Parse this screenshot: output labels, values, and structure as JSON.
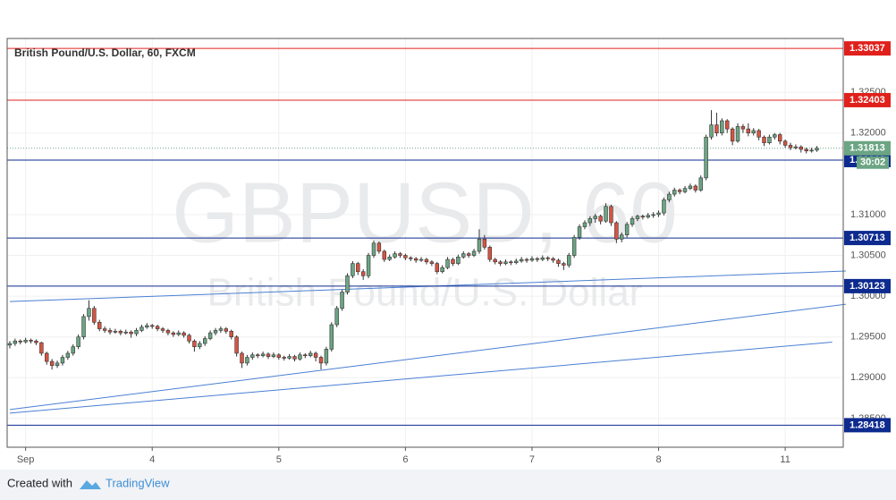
{
  "chart_data": {
    "type": "candlestick",
    "title": "British Pound/U.S. Dollar, 60, FXCM",
    "watermark": "GBPUSD, 60",
    "watermark_sub": "British Pound/U.S. Dollar",
    "footer": {
      "created_with": "Created with",
      "brand": "TradingView"
    },
    "up_color": "#6ba583",
    "down_color": "#d75442",
    "grid": true,
    "xlim": [
      -0.5,
      158
    ],
    "ylim": [
      1.28148,
      1.33159
    ],
    "xticks": [
      {
        "value": 3,
        "label": "Sep"
      },
      {
        "value": 27,
        "label": "4"
      },
      {
        "value": 51,
        "label": "5"
      },
      {
        "value": 75,
        "label": "6"
      },
      {
        "value": 99,
        "label": "7"
      },
      {
        "value": 123,
        "label": "8"
      },
      {
        "value": 147,
        "label": "11"
      }
    ],
    "yticks": [
      {
        "value": 1.285,
        "label": "1.28500"
      },
      {
        "value": 1.29,
        "label": "1.29000"
      },
      {
        "value": 1.295,
        "label": "1.29500"
      },
      {
        "value": 1.3,
        "label": "1.30000"
      },
      {
        "value": 1.305,
        "label": "1.30500"
      },
      {
        "value": 1.31,
        "label": "1.31000"
      },
      {
        "value": 1.32,
        "label": "1.32000"
      },
      {
        "value": 1.325,
        "label": "1.32500"
      }
    ],
    "levels": [
      {
        "price": 1.33037,
        "color": "#e0201b"
      },
      {
        "price": 1.32403,
        "color": "#e0201b"
      },
      {
        "price": 1.31668,
        "color": "#0d2a8f"
      },
      {
        "price": 1.30713,
        "color": "#0d2a8f"
      },
      {
        "price": 1.30123,
        "color": "#0d2a8f"
      },
      {
        "price": 1.28418,
        "color": "#0d2a8f"
      }
    ],
    "last_price": 1.31813,
    "countdown": "30:02",
    "trendlines": [
      {
        "x": [
          0,
          158.5
        ],
        "y": [
          1.29934,
          1.30308
        ],
        "color": "#4a7fd4"
      },
      {
        "x": [
          0,
          158.5
        ],
        "y": [
          1.2861,
          1.29901
        ],
        "color": "#4a7fd4"
      },
      {
        "x": [
          0,
          155.9
        ],
        "y": [
          1.28566,
          1.29436
        ],
        "color": "#4a7fd4"
      }
    ],
    "ohlc": [
      [
        1.294,
        1.2945,
        1.2936,
        1.2942
      ],
      [
        1.2942,
        1.2948,
        1.2939,
        1.2945
      ],
      [
        1.2945,
        1.2947,
        1.2941,
        1.2944
      ],
      [
        1.2944,
        1.2949,
        1.2942,
        1.2946
      ],
      [
        1.2946,
        1.2948,
        1.2942,
        1.2945
      ],
      [
        1.2945,
        1.2947,
        1.294,
        1.2943
      ],
      [
        1.2943,
        1.2944,
        1.2927,
        1.293
      ],
      [
        1.293,
        1.2932,
        1.2916,
        1.292
      ],
      [
        1.292,
        1.2923,
        1.291,
        1.2915
      ],
      [
        1.2915,
        1.2921,
        1.2912,
        1.2918
      ],
      [
        1.2918,
        1.2928,
        1.2915,
        1.2925
      ],
      [
        1.2925,
        1.2933,
        1.2922,
        1.293
      ],
      [
        1.293,
        1.2941,
        1.2927,
        1.2938
      ],
      [
        1.2938,
        1.2953,
        1.2935,
        1.295
      ],
      [
        1.295,
        1.2978,
        1.2947,
        1.2975
      ],
      [
        1.2975,
        1.2995,
        1.297,
        1.2985
      ],
      [
        1.2985,
        1.2988,
        1.2965,
        1.2968
      ],
      [
        1.2968,
        1.2971,
        1.2957,
        1.296
      ],
      [
        1.296,
        1.2963,
        1.2955,
        1.2958
      ],
      [
        1.2958,
        1.2961,
        1.2953,
        1.2956
      ],
      [
        1.2956,
        1.296,
        1.2954,
        1.2957
      ],
      [
        1.2957,
        1.2959,
        1.2952,
        1.2955
      ],
      [
        1.2955,
        1.2959,
        1.2953,
        1.2956
      ],
      [
        1.2956,
        1.2958,
        1.2949,
        1.2954
      ],
      [
        1.2954,
        1.2961,
        1.2951,
        1.2958
      ],
      [
        1.2958,
        1.2965,
        1.2956,
        1.2962
      ],
      [
        1.2962,
        1.2967,
        1.296,
        1.2964
      ],
      [
        1.2964,
        1.2966,
        1.296,
        1.2963
      ],
      [
        1.2963,
        1.2965,
        1.2957,
        1.296
      ],
      [
        1.296,
        1.2962,
        1.2955,
        1.2958
      ],
      [
        1.2958,
        1.296,
        1.2952,
        1.2955
      ],
      [
        1.2955,
        1.2957,
        1.295,
        1.2953
      ],
      [
        1.2953,
        1.2958,
        1.2951,
        1.2955
      ],
      [
        1.2955,
        1.2957,
        1.2949,
        1.2952
      ],
      [
        1.2952,
        1.2954,
        1.2942,
        1.2945
      ],
      [
        1.2945,
        1.2947,
        1.2932,
        1.2938
      ],
      [
        1.2938,
        1.2945,
        1.2935,
        1.2942
      ],
      [
        1.2942,
        1.2951,
        1.2939,
        1.2948
      ],
      [
        1.2948,
        1.2958,
        1.2946,
        1.2955
      ],
      [
        1.2955,
        1.2961,
        1.2952,
        1.2958
      ],
      [
        1.2958,
        1.2963,
        1.2955,
        1.296
      ],
      [
        1.296,
        1.2962,
        1.2954,
        1.2957
      ],
      [
        1.2957,
        1.2959,
        1.2947,
        1.295
      ],
      [
        1.295,
        1.2952,
        1.2926,
        1.293
      ],
      [
        1.293,
        1.2932,
        1.2912,
        1.2918
      ],
      [
        1.2918,
        1.2928,
        1.2915,
        1.2925
      ],
      [
        1.2925,
        1.2931,
        1.2922,
        1.2928
      ],
      [
        1.2928,
        1.293,
        1.2924,
        1.2927
      ],
      [
        1.2927,
        1.2932,
        1.2925,
        1.2929
      ],
      [
        1.2929,
        1.2931,
        1.2923,
        1.2926
      ],
      [
        1.2926,
        1.2931,
        1.2924,
        1.2928
      ],
      [
        1.2928,
        1.293,
        1.2922,
        1.2925
      ],
      [
        1.2925,
        1.2927,
        1.2921,
        1.2924
      ],
      [
        1.2924,
        1.2929,
        1.2922,
        1.2926
      ],
      [
        1.2926,
        1.2928,
        1.292,
        1.2923
      ],
      [
        1.2923,
        1.2931,
        1.2921,
        1.2928
      ],
      [
        1.2928,
        1.293,
        1.2924,
        1.2927
      ],
      [
        1.2927,
        1.2933,
        1.2925,
        1.293
      ],
      [
        1.293,
        1.2932,
        1.292,
        1.2925
      ],
      [
        1.2925,
        1.2927,
        1.291,
        1.2918
      ],
      [
        1.2918,
        1.2938,
        1.2915,
        1.2935
      ],
      [
        1.2935,
        1.2968,
        1.2932,
        1.2965
      ],
      [
        1.2965,
        1.2988,
        1.2962,
        1.2985
      ],
      [
        1.2985,
        1.3008,
        1.2982,
        1.3005
      ],
      [
        1.3005,
        1.3028,
        1.3002,
        1.3025
      ],
      [
        1.3025,
        1.3043,
        1.3022,
        1.304
      ],
      [
        1.304,
        1.3042,
        1.3026,
        1.303
      ],
      [
        1.303,
        1.3033,
        1.302,
        1.3025
      ],
      [
        1.3025,
        1.3053,
        1.3022,
        1.305
      ],
      [
        1.305,
        1.3068,
        1.3047,
        1.3065
      ],
      [
        1.3065,
        1.3067,
        1.3052,
        1.3055
      ],
      [
        1.3055,
        1.3057,
        1.3042,
        1.3045
      ],
      [
        1.3045,
        1.3051,
        1.3043,
        1.3048
      ],
      [
        1.3048,
        1.3055,
        1.3046,
        1.3052
      ],
      [
        1.3052,
        1.3054,
        1.3047,
        1.305
      ],
      [
        1.305,
        1.3052,
        1.3044,
        1.3047
      ],
      [
        1.3047,
        1.3049,
        1.3043,
        1.3046
      ],
      [
        1.3046,
        1.3048,
        1.3041,
        1.3044
      ],
      [
        1.3044,
        1.3048,
        1.3042,
        1.3045
      ],
      [
        1.3045,
        1.3047,
        1.3039,
        1.3042
      ],
      [
        1.3042,
        1.3044,
        1.3037,
        1.304
      ],
      [
        1.304,
        1.3042,
        1.3027,
        1.303
      ],
      [
        1.303,
        1.3038,
        1.3028,
        1.3035
      ],
      [
        1.3035,
        1.3048,
        1.3033,
        1.3045
      ],
      [
        1.3045,
        1.3047,
        1.3037,
        1.304
      ],
      [
        1.304,
        1.3051,
        1.3038,
        1.3048
      ],
      [
        1.3048,
        1.3055,
        1.3046,
        1.3052
      ],
      [
        1.3052,
        1.3054,
        1.3047,
        1.305
      ],
      [
        1.305,
        1.3058,
        1.3048,
        1.3055
      ],
      [
        1.3055,
        1.3082,
        1.3052,
        1.307
      ],
      [
        1.307,
        1.3075,
        1.3057,
        1.306
      ],
      [
        1.306,
        1.3062,
        1.3042,
        1.3045
      ],
      [
        1.3045,
        1.3047,
        1.3039,
        1.3042
      ],
      [
        1.3042,
        1.3044,
        1.3037,
        1.304
      ],
      [
        1.304,
        1.3045,
        1.3038,
        1.3042
      ],
      [
        1.3042,
        1.3044,
        1.3038,
        1.3041
      ],
      [
        1.3041,
        1.3046,
        1.3039,
        1.3043
      ],
      [
        1.3043,
        1.3048,
        1.3041,
        1.3045
      ],
      [
        1.3045,
        1.3047,
        1.3041,
        1.3044
      ],
      [
        1.3044,
        1.3049,
        1.3042,
        1.3046
      ],
      [
        1.3046,
        1.3048,
        1.3042,
        1.3045
      ],
      [
        1.3045,
        1.305,
        1.3043,
        1.3047
      ],
      [
        1.3047,
        1.3049,
        1.3043,
        1.3046
      ],
      [
        1.3046,
        1.3048,
        1.3041,
        1.3044
      ],
      [
        1.3044,
        1.3046,
        1.3036,
        1.304
      ],
      [
        1.304,
        1.3042,
        1.3032,
        1.3038
      ],
      [
        1.3038,
        1.3053,
        1.3035,
        1.305
      ],
      [
        1.305,
        1.3075,
        1.3047,
        1.3072
      ],
      [
        1.3072,
        1.3088,
        1.3069,
        1.3085
      ],
      [
        1.3085,
        1.3093,
        1.3082,
        1.309
      ],
      [
        1.309,
        1.3098,
        1.3086,
        1.3095
      ],
      [
        1.3095,
        1.3101,
        1.309,
        1.3098
      ],
      [
        1.3098,
        1.31,
        1.3088,
        1.3092
      ],
      [
        1.3092,
        1.3114,
        1.309,
        1.311
      ],
      [
        1.311,
        1.3112,
        1.3086,
        1.309
      ],
      [
        1.309,
        1.3092,
        1.3065,
        1.307
      ],
      [
        1.307,
        1.3078,
        1.3066,
        1.3075
      ],
      [
        1.3075,
        1.3091,
        1.3072,
        1.3088
      ],
      [
        1.3088,
        1.3098,
        1.3085,
        1.3095
      ],
      [
        1.3095,
        1.31,
        1.3092,
        1.3098
      ],
      [
        1.3098,
        1.31,
        1.3094,
        1.3097
      ],
      [
        1.3097,
        1.3102,
        1.3095,
        1.3099
      ],
      [
        1.3099,
        1.3103,
        1.3096,
        1.31
      ],
      [
        1.31,
        1.3105,
        1.3097,
        1.3102
      ],
      [
        1.3102,
        1.3121,
        1.3099,
        1.3118
      ],
      [
        1.3118,
        1.3128,
        1.3115,
        1.3125
      ],
      [
        1.3125,
        1.3133,
        1.3122,
        1.313
      ],
      [
        1.313,
        1.3132,
        1.3125,
        1.3128
      ],
      [
        1.3128,
        1.3135,
        1.3126,
        1.3132
      ],
      [
        1.3132,
        1.3138,
        1.313,
        1.3135
      ],
      [
        1.3135,
        1.3137,
        1.3127,
        1.313
      ],
      [
        1.313,
        1.3148,
        1.3128,
        1.3145
      ],
      [
        1.3145,
        1.3198,
        1.3142,
        1.3195
      ],
      [
        1.3195,
        1.3228,
        1.3192,
        1.321
      ],
      [
        1.321,
        1.3225,
        1.3196,
        1.32
      ],
      [
        1.32,
        1.3218,
        1.3197,
        1.3215
      ],
      [
        1.3215,
        1.3217,
        1.32,
        1.3205
      ],
      [
        1.3205,
        1.3207,
        1.3185,
        1.319
      ],
      [
        1.319,
        1.3212,
        1.3188,
        1.3208
      ],
      [
        1.3208,
        1.3211,
        1.32,
        1.3205
      ],
      [
        1.3205,
        1.3212,
        1.3196,
        1.32
      ],
      [
        1.32,
        1.3206,
        1.3197,
        1.3203
      ],
      [
        1.3203,
        1.3205,
        1.3191,
        1.3195
      ],
      [
        1.3195,
        1.3197,
        1.3184,
        1.3188
      ],
      [
        1.3188,
        1.3198,
        1.3186,
        1.3195
      ],
      [
        1.3195,
        1.32,
        1.3192,
        1.3198
      ],
      [
        1.3198,
        1.32,
        1.3186,
        1.319
      ],
      [
        1.319,
        1.3192,
        1.3182,
        1.3185
      ],
      [
        1.3185,
        1.3188,
        1.3179,
        1.3182
      ],
      [
        1.3182,
        1.3186,
        1.318,
        1.3183
      ],
      [
        1.3183,
        1.3185,
        1.3176,
        1.318
      ],
      [
        1.318,
        1.3182,
        1.3175,
        1.3178
      ],
      [
        1.3178,
        1.3182,
        1.3176,
        1.3179
      ],
      [
        1.3179,
        1.3184,
        1.3177,
        1.31813
      ]
    ]
  }
}
